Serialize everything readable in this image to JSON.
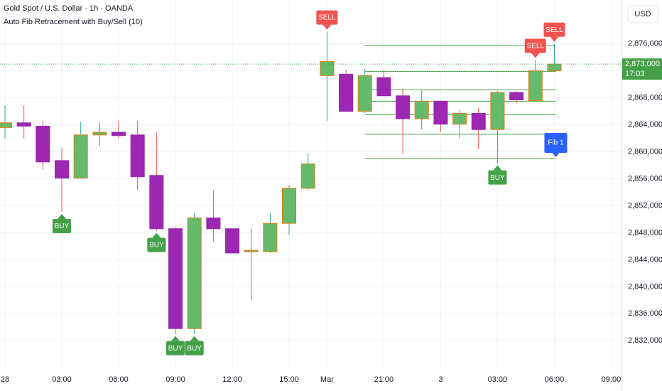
{
  "chart_data": {
    "type": "candlestick",
    "title": "Gold Spot / U.S. Dollar · 1h · OANDA",
    "indicator": "Auto Fib Retracement with Buy/Sell (10)",
    "currency": "USD",
    "categories": [
      "28",
      null,
      null,
      "03:00",
      null,
      null,
      "06:00",
      null,
      null,
      "09:00",
      null,
      null,
      "12:00",
      null,
      null,
      "15:00",
      null,
      "Mar",
      null,
      null,
      "21:00",
      null,
      null,
      "3",
      null,
      null,
      "03:00",
      null,
      null,
      "06:00",
      null,
      null,
      "09:00"
    ],
    "open": [
      2863600,
      2864300,
      2863800,
      2858700,
      2856100,
      2862500,
      2862900,
      2862500,
      2856500,
      2848600,
      2833800,
      2850200,
      2848600,
      2845200,
      2845200,
      2849400,
      2854600,
      2871300,
      2871500,
      2866000,
      2871000,
      2868300,
      2864900,
      2867500,
      2864100,
      2865700,
      2863300,
      2868800,
      2867600,
      2872000,
      null,
      null,
      null
    ],
    "high": [
      2866900,
      2866900,
      2864600,
      2860600,
      2864400,
      2864400,
      2864600,
      2864600,
      2862900,
      2848800,
      2850900,
      2854300,
      2848600,
      2848600,
      2850900,
      2855100,
      2859800,
      2877800,
      2872200,
      2872300,
      2872200,
      2869400,
      2869100,
      2867600,
      2866200,
      2866500,
      2869000,
      2869000,
      2873600,
      2876000,
      null,
      null,
      null
    ],
    "low": [
      2862000,
      2862000,
      2857400,
      2851100,
      2856100,
      2860900,
      2862000,
      2854300,
      2848300,
      2833000,
      2833000,
      2846700,
      2845000,
      2838000,
      2845000,
      2847700,
      2854300,
      2864600,
      2866000,
      2865700,
      2868300,
      2859600,
      2863300,
      2862900,
      2862000,
      2860400,
      2858300,
      2867200,
      2867600,
      2872100,
      null,
      null,
      null
    ],
    "close": [
      2864300,
      2863800,
      2858500,
      2856100,
      2862500,
      2862900,
      2862400,
      2856300,
      2848600,
      2833800,
      2850200,
      2848600,
      2845000,
      2845400,
      2849400,
      2854600,
      2858200,
      2873400,
      2866000,
      2871300,
      2868300,
      2864900,
      2867500,
      2864100,
      2865700,
      2863300,
      2868800,
      2867700,
      2872000,
      2873000,
      null,
      null,
      null
    ],
    "signals": [
      null,
      null,
      null,
      "BUY",
      null,
      null,
      null,
      null,
      "BUY",
      "BUY",
      "BUY",
      null,
      null,
      null,
      null,
      null,
      null,
      "SELL",
      null,
      null,
      null,
      null,
      null,
      null,
      null,
      null,
      "BUY",
      null,
      "SELL",
      "SELL",
      null,
      null,
      null
    ],
    "fib_levels": [
      2875700,
      2871900,
      2869200,
      2867500,
      2865500,
      2862600,
      2859000
    ],
    "fib_label": "Fib 1",
    "fib_color": "#43a047",
    "last_price_label": "2,873,000",
    "countdown": "17:03",
    "up_color": "#66bb6a",
    "down_color": "#9c27b0",
    "border_color": "#e07a12",
    "up_wick": "#26a69a",
    "down_wick": "#ef5350",
    "buy_color": "#43a047",
    "sell_color": "#f05350",
    "fib_label_color": "#2962ff",
    "ylim": [
      2827500,
      2882500
    ],
    "yticks": [
      {
        "value": 2832000,
        "label": "2,832,000"
      },
      {
        "value": 2836000,
        "label": "2,836,000"
      },
      {
        "value": 2840000,
        "label": "2,840,000"
      },
      {
        "value": 2844000,
        "label": "2,844,000"
      },
      {
        "value": 2848000,
        "label": "2,848,000"
      },
      {
        "value": 2852000,
        "label": "2,852,000"
      },
      {
        "value": 2856000,
        "label": "2,856,000"
      },
      {
        "value": 2860000,
        "label": "2,860,000"
      },
      {
        "value": 2864000,
        "label": "2,864,000"
      },
      {
        "value": 2868000,
        "label": "2,868,000"
      },
      {
        "value": 2872000,
        "label": "2,872,000"
      },
      {
        "value": 2876000,
        "label": "2,876,000"
      }
    ],
    "grid": true
  }
}
